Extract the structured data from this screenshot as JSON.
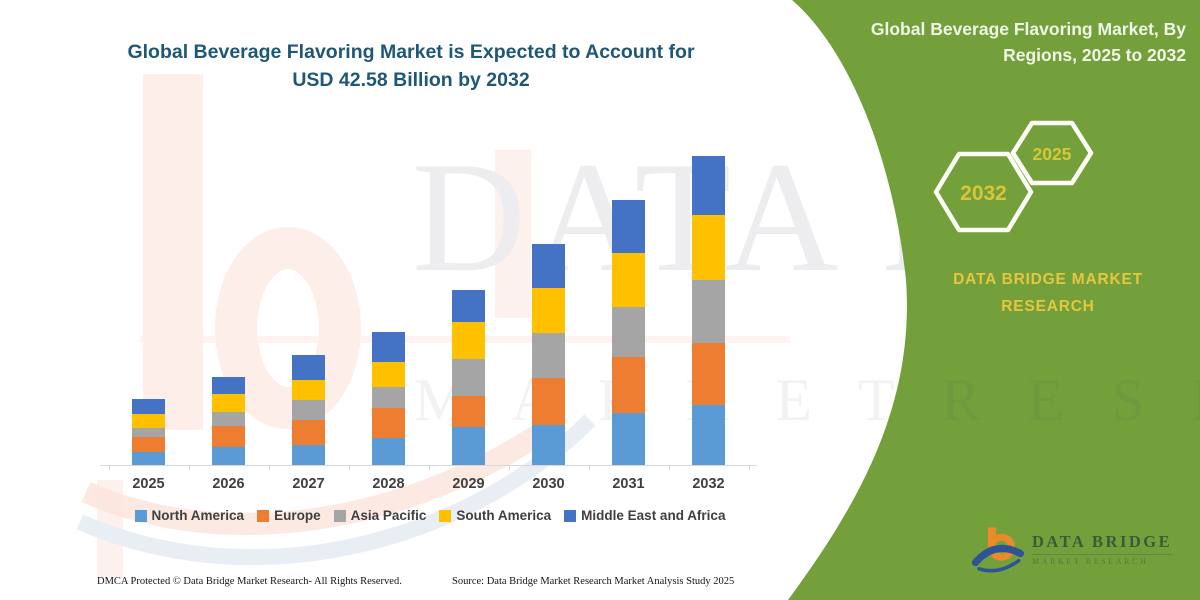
{
  "title": {
    "line1": "Global Beverage Flavoring Market is Expected to Account for",
    "line2": "USD 42.58 Billion by 2032"
  },
  "side_panel": {
    "heading_line1": "Global Beverage Flavoring Market, By",
    "heading_line2": "Regions, 2025 to 2032",
    "hexagons": [
      {
        "label": "2032"
      },
      {
        "label": "2025"
      }
    ],
    "brand_line1": "DATA BRIDGE MARKET",
    "brand_line2": "RESEARCH",
    "logo": {
      "name": "DATA BRIDGE",
      "subtitle": "MARKET RESEARCH"
    },
    "panel_color": "#74A03C",
    "accent_yellow": "#E6C63E"
  },
  "watermark": {
    "big_text": "DATA BRIDGE",
    "row2_text": "M A R K E T   R E S E A R C H"
  },
  "footer": {
    "left": "DMCA Protected © Data Bridge Market Research-  All Rights Reserved.",
    "right": "Source: Data Bridge Market Research  Market Analysis Study 2025"
  },
  "chart_data": {
    "type": "bar",
    "stacked": true,
    "unit": "USD Billion",
    "title": "Global Beverage Flavoring Market is Expected to Account for USD 42.58 Billion by 2032",
    "annotation": "USD 42.58 Billion by 2032",
    "categories": [
      "2025",
      "2026",
      "2027",
      "2028",
      "2029",
      "2030",
      "2031",
      "2032"
    ],
    "series": [
      {
        "name": "North America",
        "color": "#5B9BD5",
        "values": [
          1.79,
          2.44,
          2.76,
          3.68,
          5.19,
          5.51,
          7.12,
          8.27
        ]
      },
      {
        "name": "Europe",
        "color": "#ED7D31",
        "values": [
          2.07,
          2.99,
          3.45,
          4.13,
          4.31,
          6.43,
          7.81,
          8.5
        ]
      },
      {
        "name": "Asia Pacific",
        "color": "#A5A5A5",
        "values": [
          1.28,
          1.83,
          2.76,
          2.99,
          5.1,
          6.2,
          6.89,
          8.72
        ]
      },
      {
        "name": "South America",
        "color": "#FFC000",
        "values": [
          1.85,
          2.52,
          2.76,
          3.45,
          5.06,
          6.2,
          7.44,
          8.96
        ]
      },
      {
        "name": "Middle East and Africa",
        "color": "#4472C4",
        "values": [
          2.07,
          2.38,
          3.45,
          4.13,
          4.45,
          6.06,
          7.26,
          8.13
        ]
      }
    ],
    "xlabel": "",
    "ylabel": "",
    "ylim": [
      0,
      44.8
    ],
    "y_axis_visible": false,
    "gridlines": false,
    "legend_position": "bottom"
  }
}
